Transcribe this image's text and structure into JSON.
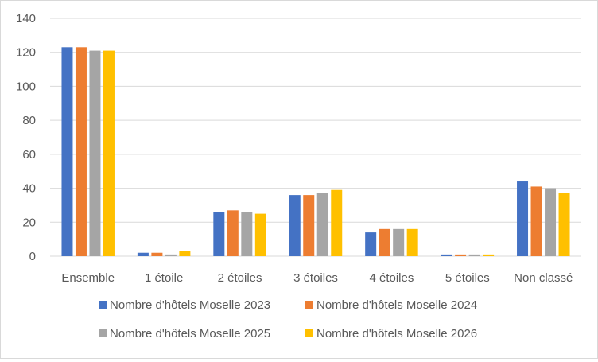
{
  "chart_data": {
    "type": "bar",
    "categories": [
      "Ensemble",
      "1 étoile",
      "2 étoiles",
      "3 étoiles",
      "4 étoiles",
      "5 étoiles",
      "Non classé"
    ],
    "series": [
      {
        "name": "Nombre d'hôtels Moselle  2023",
        "color": "#4472C4",
        "values": [
          123,
          2,
          26,
          36,
          14,
          1,
          44
        ]
      },
      {
        "name": "Nombre d'hôtels Moselle  2024",
        "color": "#ED7D31",
        "values": [
          123,
          2,
          27,
          36,
          16,
          1,
          41
        ]
      },
      {
        "name": "Nombre d'hôtels Moselle  2025",
        "color": "#A5A5A5",
        "values": [
          121,
          1,
          26,
          37,
          16,
          1,
          40
        ]
      },
      {
        "name": "Nombre d'hôtels Moselle  2026",
        "color": "#FFC000",
        "values": [
          121,
          3,
          25,
          39,
          16,
          1,
          37
        ]
      }
    ],
    "yticks": [
      "0",
      "20",
      "40",
      "60",
      "80",
      "100",
      "120",
      "140"
    ],
    "ylim": [
      0,
      140
    ],
    "grid": true,
    "legend_position": "bottom",
    "gridline_color": "#d9d9d9"
  }
}
